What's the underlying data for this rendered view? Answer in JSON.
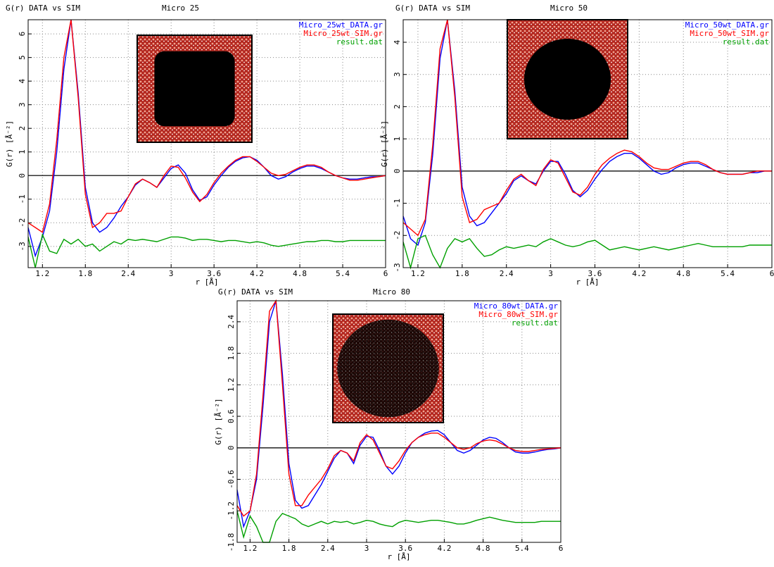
{
  "chart_data": [
    {
      "type": "line",
      "title": "G(r) DATA vs SIM",
      "subtitle": "Micro 25",
      "xlabel": "r [Å]",
      "ylabel": "G(r) [Å⁻²]",
      "grid": true,
      "legend": "top-right",
      "xlim": [
        1.0,
        6.0
      ],
      "xticks": [
        1.2,
        1.8,
        2.4,
        3,
        3.6,
        4.2,
        4.8,
        5.4,
        6
      ],
      "ylim": [
        -3.9,
        6.6
      ],
      "yticks": [
        -3,
        -2,
        -1,
        0,
        1,
        2,
        3,
        4,
        5,
        6
      ],
      "x": [
        1.0,
        1.1,
        1.2,
        1.3,
        1.4,
        1.5,
        1.6,
        1.7,
        1.8,
        1.9,
        2.0,
        2.1,
        2.2,
        2.3,
        2.4,
        2.5,
        2.6,
        2.7,
        2.8,
        2.9,
        3.0,
        3.1,
        3.2,
        3.3,
        3.4,
        3.5,
        3.6,
        3.7,
        3.8,
        3.9,
        4.0,
        4.1,
        4.2,
        4.3,
        4.4,
        4.5,
        4.6,
        4.7,
        4.8,
        4.9,
        5.0,
        5.1,
        5.2,
        5.3,
        5.4,
        5.5,
        5.6,
        5.7,
        5.8,
        5.9,
        6.0
      ],
      "series": [
        {
          "name": "Micro_25wt_DATA.gr",
          "color": "#0000ff",
          "values": [
            -2.2,
            -3.4,
            -2.6,
            -1.5,
            1.0,
            4.5,
            6.6,
            3.5,
            -0.5,
            -2.0,
            -2.4,
            -2.2,
            -1.8,
            -1.3,
            -0.9,
            -0.4,
            -0.15,
            -0.3,
            -0.5,
            -0.1,
            0.3,
            0.45,
            0.1,
            -0.6,
            -1.05,
            -0.9,
            -0.4,
            0.0,
            0.35,
            0.6,
            0.75,
            0.8,
            0.65,
            0.35,
            0.0,
            -0.15,
            -0.05,
            0.15,
            0.3,
            0.4,
            0.4,
            0.3,
            0.15,
            0.0,
            -0.1,
            -0.15,
            -0.15,
            -0.1,
            -0.05,
            -0.05,
            0.0
          ]
        },
        {
          "name": "Micro_25wt_SIM.gr",
          "color": "#ff0000",
          "values": [
            -2.0,
            -2.2,
            -2.4,
            -1.2,
            1.5,
            5.0,
            6.6,
            3.3,
            -0.8,
            -2.2,
            -2.0,
            -1.6,
            -1.6,
            -1.5,
            -0.9,
            -0.35,
            -0.15,
            -0.3,
            -0.5,
            0.0,
            0.4,
            0.35,
            -0.1,
            -0.7,
            -1.1,
            -0.8,
            -0.3,
            0.1,
            0.4,
            0.65,
            0.8,
            0.8,
            0.6,
            0.35,
            0.1,
            0.0,
            0.05,
            0.2,
            0.35,
            0.45,
            0.45,
            0.35,
            0.15,
            0.0,
            -0.1,
            -0.2,
            -0.2,
            -0.15,
            -0.1,
            -0.05,
            0.0
          ]
        },
        {
          "name": "result.dat",
          "color": "#00a000",
          "values": [
            -2.6,
            -3.9,
            -2.5,
            -3.2,
            -3.3,
            -2.7,
            -2.9,
            -2.7,
            -3.0,
            -2.9,
            -3.2,
            -3.0,
            -2.8,
            -2.9,
            -2.7,
            -2.75,
            -2.7,
            -2.75,
            -2.8,
            -2.7,
            -2.6,
            -2.6,
            -2.65,
            -2.75,
            -2.7,
            -2.7,
            -2.75,
            -2.8,
            -2.75,
            -2.75,
            -2.8,
            -2.85,
            -2.8,
            -2.85,
            -2.95,
            -3.0,
            -2.95,
            -2.9,
            -2.85,
            -2.8,
            -2.8,
            -2.75,
            -2.75,
            -2.8,
            -2.8,
            -2.75,
            -2.75,
            -2.75,
            -2.75,
            -2.75,
            -2.75
          ]
        }
      ]
    },
    {
      "type": "line",
      "title": "G(r) DATA vs SIM",
      "subtitle": "Micro 50",
      "xlabel": "r [Å]",
      "ylabel": "G(r) [Å⁻²]",
      "grid": true,
      "legend": "top-right",
      "xlim": [
        1.0,
        6.0
      ],
      "xticks": [
        1.2,
        1.8,
        2.4,
        3,
        3.6,
        4.2,
        4.8,
        5.4,
        6
      ],
      "ylim": [
        -3.0,
        4.7
      ],
      "yticks": [
        -3,
        -2,
        -1,
        0,
        1,
        2,
        3,
        4
      ],
      "x": [
        1.0,
        1.1,
        1.2,
        1.3,
        1.4,
        1.5,
        1.6,
        1.7,
        1.8,
        1.9,
        2.0,
        2.1,
        2.2,
        2.3,
        2.4,
        2.5,
        2.6,
        2.7,
        2.8,
        2.9,
        3.0,
        3.1,
        3.2,
        3.3,
        3.4,
        3.5,
        3.6,
        3.7,
        3.8,
        3.9,
        4.0,
        4.1,
        4.2,
        4.3,
        4.4,
        4.5,
        4.6,
        4.7,
        4.8,
        4.9,
        5.0,
        5.1,
        5.2,
        5.3,
        5.4,
        5.5,
        5.6,
        5.7,
        5.8,
        5.9,
        6.0
      ],
      "series": [
        {
          "name": "Micro_50wt_DATA.gr",
          "color": "#0000ff",
          "values": [
            -1.4,
            -2.1,
            -2.3,
            -1.6,
            0.5,
            3.5,
            4.7,
            2.5,
            -0.5,
            -1.4,
            -1.7,
            -1.6,
            -1.3,
            -1.0,
            -0.7,
            -0.3,
            -0.15,
            -0.3,
            -0.4,
            0.0,
            0.3,
            0.3,
            -0.1,
            -0.6,
            -0.8,
            -0.6,
            -0.25,
            0.05,
            0.3,
            0.45,
            0.55,
            0.55,
            0.4,
            0.2,
            0.0,
            -0.1,
            -0.05,
            0.1,
            0.2,
            0.25,
            0.25,
            0.15,
            0.05,
            -0.05,
            -0.1,
            -0.1,
            -0.1,
            -0.05,
            -0.05,
            0.0,
            0.0
          ]
        },
        {
          "name": "Micro_50wt_SIM.gr",
          "color": "#ff0000",
          "values": [
            -1.6,
            -1.8,
            -2.0,
            -1.5,
            0.8,
            3.8,
            4.7,
            2.3,
            -0.8,
            -1.6,
            -1.5,
            -1.2,
            -1.1,
            -1.0,
            -0.6,
            -0.25,
            -0.1,
            -0.3,
            -0.45,
            0.05,
            0.35,
            0.25,
            -0.2,
            -0.65,
            -0.75,
            -0.5,
            -0.1,
            0.2,
            0.4,
            0.55,
            0.65,
            0.6,
            0.45,
            0.25,
            0.1,
            0.05,
            0.05,
            0.15,
            0.25,
            0.3,
            0.3,
            0.2,
            0.05,
            -0.05,
            -0.1,
            -0.1,
            -0.1,
            -0.05,
            0.0,
            0.0,
            0.0
          ]
        },
        {
          "name": "result.dat",
          "color": "#00a000",
          "values": [
            -2.2,
            -3.0,
            -2.1,
            -2.0,
            -2.6,
            -3.0,
            -2.4,
            -2.1,
            -2.2,
            -2.1,
            -2.4,
            -2.65,
            -2.6,
            -2.45,
            -2.35,
            -2.4,
            -2.35,
            -2.3,
            -2.35,
            -2.2,
            -2.1,
            -2.2,
            -2.3,
            -2.35,
            -2.3,
            -2.2,
            -2.15,
            -2.3,
            -2.45,
            -2.4,
            -2.35,
            -2.4,
            -2.45,
            -2.4,
            -2.35,
            -2.4,
            -2.45,
            -2.4,
            -2.35,
            -2.3,
            -2.25,
            -2.3,
            -2.35,
            -2.35,
            -2.35,
            -2.35,
            -2.35,
            -2.3,
            -2.3,
            -2.3,
            -2.3
          ]
        }
      ]
    },
    {
      "type": "line",
      "title": "G(r) DATA vs SIM",
      "subtitle": "Micro 80",
      "xlabel": "r [Å]",
      "ylabel": "G(r) [Å⁻²]",
      "grid": true,
      "legend": "top-right",
      "xlim": [
        1.0,
        6.0
      ],
      "xticks": [
        1.2,
        1.8,
        2.4,
        3,
        3.6,
        4.2,
        4.8,
        5.4,
        6
      ],
      "ylim": [
        -1.8,
        2.8
      ],
      "yticks": [
        -1.8,
        -1.2,
        -0.6,
        0,
        0.6,
        1.2,
        1.8,
        2.4
      ],
      "x": [
        1.0,
        1.1,
        1.2,
        1.3,
        1.4,
        1.5,
        1.6,
        1.7,
        1.8,
        1.9,
        2.0,
        2.1,
        2.2,
        2.3,
        2.4,
        2.5,
        2.6,
        2.7,
        2.8,
        2.9,
        3.0,
        3.1,
        3.2,
        3.3,
        3.4,
        3.5,
        3.6,
        3.7,
        3.8,
        3.9,
        4.0,
        4.1,
        4.2,
        4.3,
        4.4,
        4.5,
        4.6,
        4.7,
        4.8,
        4.9,
        5.0,
        5.1,
        5.2,
        5.3,
        5.4,
        5.5,
        5.6,
        5.7,
        5.8,
        5.9,
        6.0
      ],
      "series": [
        {
          "name": "Micro_80wt_DATA.gr",
          "color": "#0000ff",
          "values": [
            -0.8,
            -1.5,
            -1.2,
            -0.6,
            0.8,
            2.4,
            2.8,
            1.4,
            -0.3,
            -1.0,
            -1.15,
            -1.1,
            -0.9,
            -0.7,
            -0.45,
            -0.2,
            -0.05,
            -0.1,
            -0.3,
            0.05,
            0.22,
            0.2,
            -0.05,
            -0.35,
            -0.5,
            -0.35,
            -0.1,
            0.1,
            0.2,
            0.28,
            0.32,
            0.33,
            0.25,
            0.1,
            -0.05,
            -0.1,
            -0.05,
            0.05,
            0.15,
            0.2,
            0.18,
            0.1,
            0.0,
            -0.08,
            -0.1,
            -0.1,
            -0.08,
            -0.05,
            -0.03,
            -0.02,
            0.0
          ]
        },
        {
          "name": "Micro_80wt_SIM.gr",
          "color": "#ff0000",
          "values": [
            -1.1,
            -1.3,
            -1.2,
            -0.5,
            1.0,
            2.6,
            2.8,
            1.2,
            -0.5,
            -1.1,
            -1.1,
            -0.9,
            -0.75,
            -0.6,
            -0.4,
            -0.15,
            -0.05,
            -0.1,
            -0.25,
            0.1,
            0.25,
            0.15,
            -0.1,
            -0.35,
            -0.4,
            -0.25,
            -0.05,
            0.1,
            0.2,
            0.25,
            0.28,
            0.28,
            0.2,
            0.1,
            0.0,
            -0.03,
            0.0,
            0.08,
            0.13,
            0.15,
            0.13,
            0.07,
            0.0,
            -0.05,
            -0.07,
            -0.07,
            -0.05,
            -0.03,
            -0.02,
            -0.01,
            0.0
          ]
        },
        {
          "name": "result.dat",
          "color": "#00a000",
          "values": [
            -1.2,
            -1.7,
            -1.3,
            -1.5,
            -1.8,
            -1.8,
            -1.4,
            -1.25,
            -1.3,
            -1.35,
            -1.45,
            -1.5,
            -1.45,
            -1.4,
            -1.45,
            -1.4,
            -1.42,
            -1.4,
            -1.45,
            -1.42,
            -1.38,
            -1.4,
            -1.45,
            -1.48,
            -1.5,
            -1.42,
            -1.38,
            -1.4,
            -1.42,
            -1.4,
            -1.38,
            -1.38,
            -1.4,
            -1.42,
            -1.45,
            -1.45,
            -1.42,
            -1.38,
            -1.35,
            -1.32,
            -1.35,
            -1.38,
            -1.4,
            -1.42,
            -1.42,
            -1.42,
            -1.42,
            -1.4,
            -1.4,
            -1.4,
            -1.4
          ]
        }
      ]
    }
  ]
}
